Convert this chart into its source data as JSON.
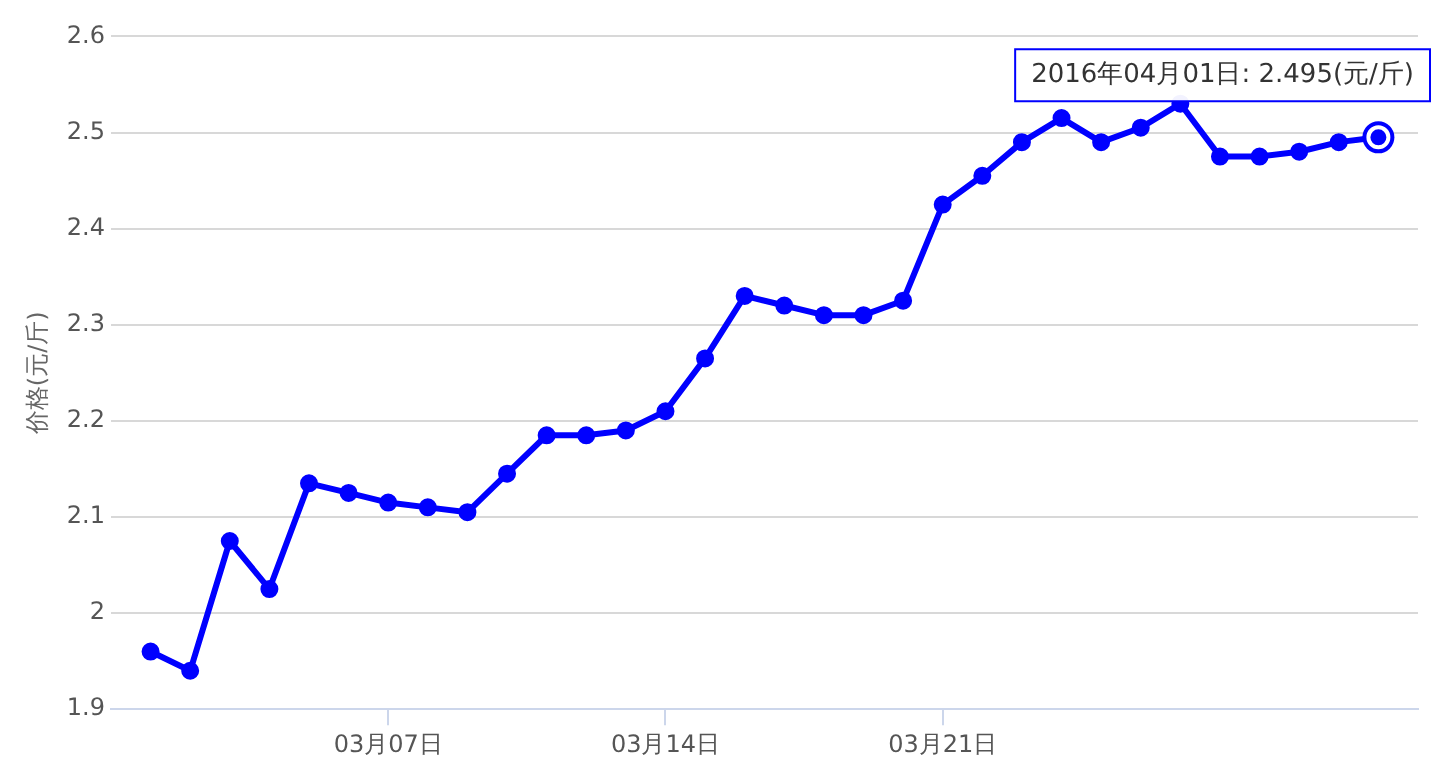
{
  "chart_data": {
    "type": "line",
    "ylabel": "价格(元/斤)",
    "x": [
      "--03-01",
      "--03-02",
      "--03-03",
      "--03-04",
      "--03-05",
      "--03-06",
      "--03-07",
      "--03-08",
      "--03-09",
      "--03-10",
      "--03-11",
      "--03-12",
      "--03-13",
      "--03-14",
      "--03-15",
      "--03-16",
      "--03-17",
      "--03-18",
      "--03-19",
      "--03-20",
      "--03-21",
      "--03-22",
      "--03-23",
      "--03-24",
      "--03-25",
      "--03-26",
      "--03-27",
      "--03-28",
      "--03-29",
      "--03-30",
      "--03-31",
      "--04-01"
    ],
    "series": [
      {
        "color": "#0000ff",
        "values": [
          1.96,
          1.94,
          2.075,
          2.025,
          2.135,
          2.125,
          2.115,
          2.11,
          2.105,
          2.145,
          2.185,
          2.185,
          2.19,
          2.21,
          2.265,
          2.33,
          2.32,
          2.31,
          2.31,
          2.325,
          2.425,
          2.455,
          2.49,
          2.515,
          2.49,
          2.505,
          2.53,
          2.475,
          2.475,
          2.48,
          2.49,
          2.495
        ]
      }
    ],
    "xlim": [
      "--02-29",
      "--04-02"
    ],
    "xticks": [
      {
        "value": "--03-07",
        "label": "03月07日"
      },
      {
        "value": "--03-14",
        "label": "03月14日"
      },
      {
        "value": "--03-21",
        "label": "03月21日"
      }
    ],
    "ylim": [
      1.9,
      2.6
    ],
    "yticks": [
      1.9,
      2,
      2.1,
      2.2,
      2.3,
      2.4,
      2.5,
      2.6
    ],
    "grid": "y",
    "legend": false,
    "marker": "circle",
    "line_style": "solid",
    "annotations": [
      {
        "text": "2016年04月01日: 2.495(元/斤)",
        "x": "--04-01",
        "y": 2.495
      }
    ]
  }
}
